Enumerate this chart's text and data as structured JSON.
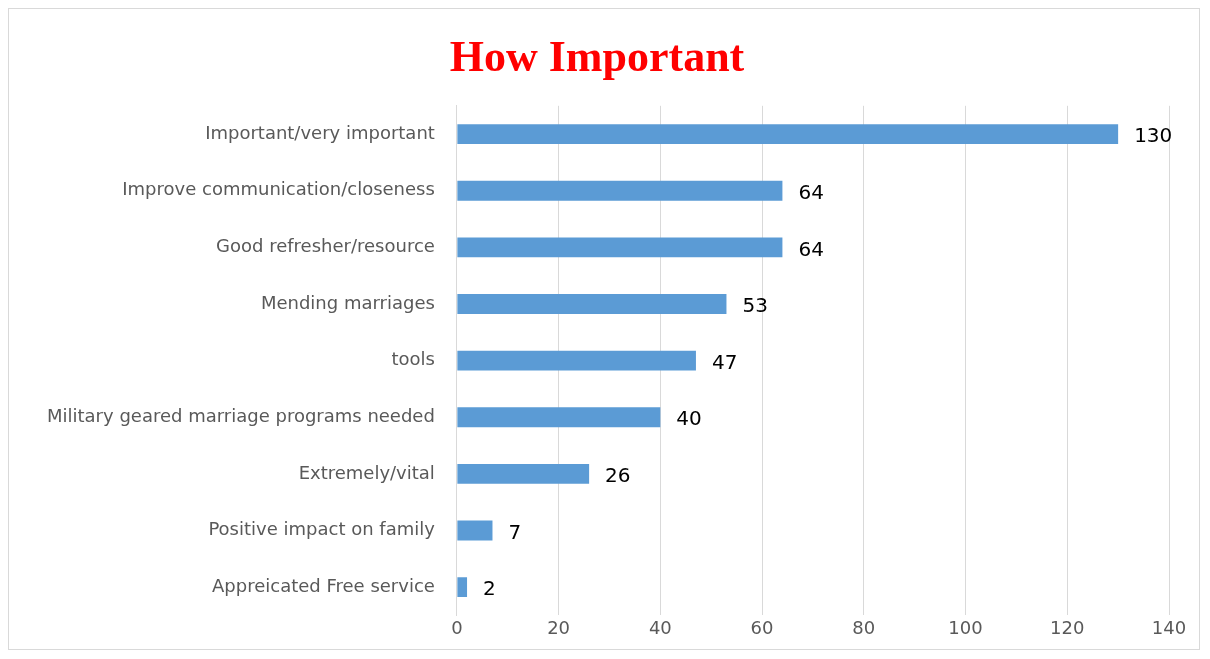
{
  "chart_data": {
    "type": "bar",
    "orientation": "horizontal",
    "title": "How Important",
    "categories": [
      "Important/very important",
      "Improve communication/closeness",
      "Good refresher/resource",
      "Mending marriages",
      "tools",
      "Military geared marriage programs needed",
      "Extremely/vital",
      "Positive impact on family",
      "Appreicated Free service"
    ],
    "values": [
      130,
      64,
      64,
      53,
      47,
      40,
      26,
      7,
      2
    ],
    "color": "#5b9bd5",
    "xlim": [
      0,
      140
    ],
    "xticks": [
      0,
      20,
      40,
      60,
      80,
      100,
      120,
      140
    ],
    "grid": "x",
    "data_labels": true
  }
}
